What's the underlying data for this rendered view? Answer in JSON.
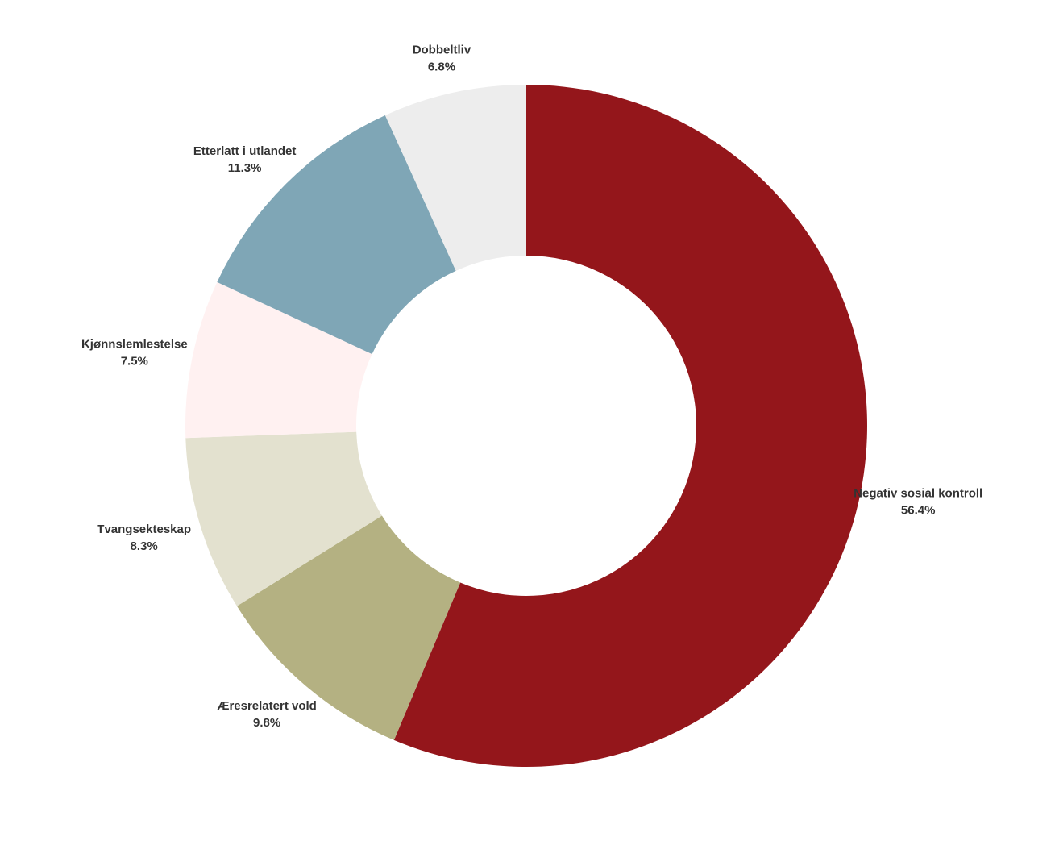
{
  "chart_data": {
    "type": "pie",
    "donut": true,
    "title": "",
    "start_angle_deg": 0,
    "direction": "clockwise",
    "slices": [
      {
        "label": "Negativ sosial kontroll",
        "value_text": "56.4%",
        "value": 56.4,
        "color": "#94161b"
      },
      {
        "label": "Æresrelatert vold",
        "value_text": "9.8%",
        "value": 9.8,
        "color": "#b4b182"
      },
      {
        "label": "Tvangsekteskap",
        "value_text": "8.3%",
        "value": 8.3,
        "color": "#e3e1cf"
      },
      {
        "label": "Kjønnslemlestelse",
        "value_text": "7.5%",
        "value": 7.5,
        "color": "#fff1f1"
      },
      {
        "label": "Etterlatt i utlandet",
        "value_text": "11.3%",
        "value": 11.3,
        "color": "#7fa6b6"
      },
      {
        "label": "Dobbeltliv",
        "value_text": "6.8%",
        "value": 6.8,
        "color": "#ededed"
      }
    ]
  }
}
